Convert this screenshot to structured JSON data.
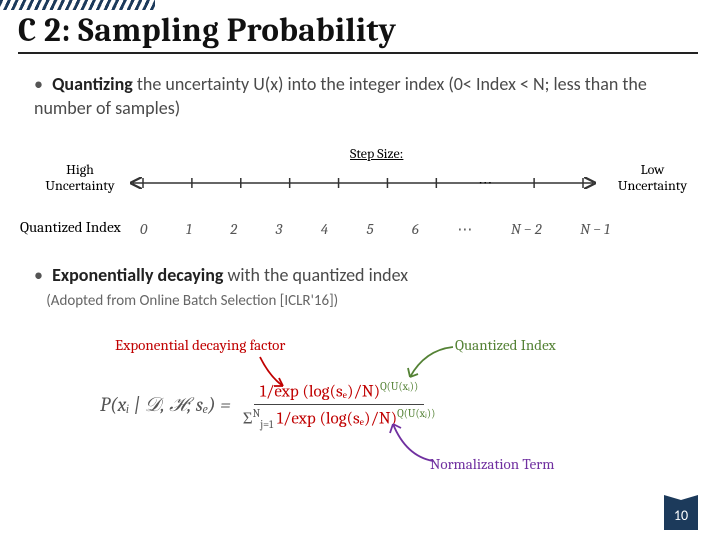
{
  "title": "C 2: Sampling Probability",
  "bullet1": {
    "lead": "Quantizing",
    "rest": " the uncertainty U(x) into the integer index (0< Index < N; less than the number of samples)"
  },
  "stepSizeLabel": "Step Size:",
  "highUncertainty": "High Uncertainty",
  "lowUncertainty": "Low Uncertainty",
  "quantizedIndexLabel": "Quantized Index",
  "numberline": {
    "ticks": [
      "0",
      "1",
      "2",
      "3",
      "4",
      "5",
      "6",
      "⋯",
      "N − 2",
      "N − 1"
    ],
    "stroke": "#333333",
    "tick_height": 10
  },
  "bullet2": {
    "lead": "Exponentially decaying",
    "rest": " with the quantized index",
    "subnote": "(Adopted from Online Batch Selection [ICLR'16])"
  },
  "expFactorLabel": "Exponential decaying factor",
  "quantizedIndexLabel2": "Quantized Index",
  "normalizationTermLabel": "Normalization Term",
  "colors": {
    "red": "#c00000",
    "green": "#548235",
    "purple": "#7030a0",
    "navy": "#1c3a5b",
    "text_muted": "#555555"
  },
  "formula": {
    "lhs": "P(xᵢ | 𝒟, ℋ; sₑ) =",
    "num_core": "1/exp (log(sₑ)/N)",
    "num_exp": "Q(U(xᵢ))",
    "den_sum": "Σ",
    "den_sum_up": "N",
    "den_sum_lo": "j=1",
    "den_core": " 1/exp (log(sₑ)/N)",
    "den_exp": "Q(U(xⱼ))"
  },
  "pageNumber": "10"
}
